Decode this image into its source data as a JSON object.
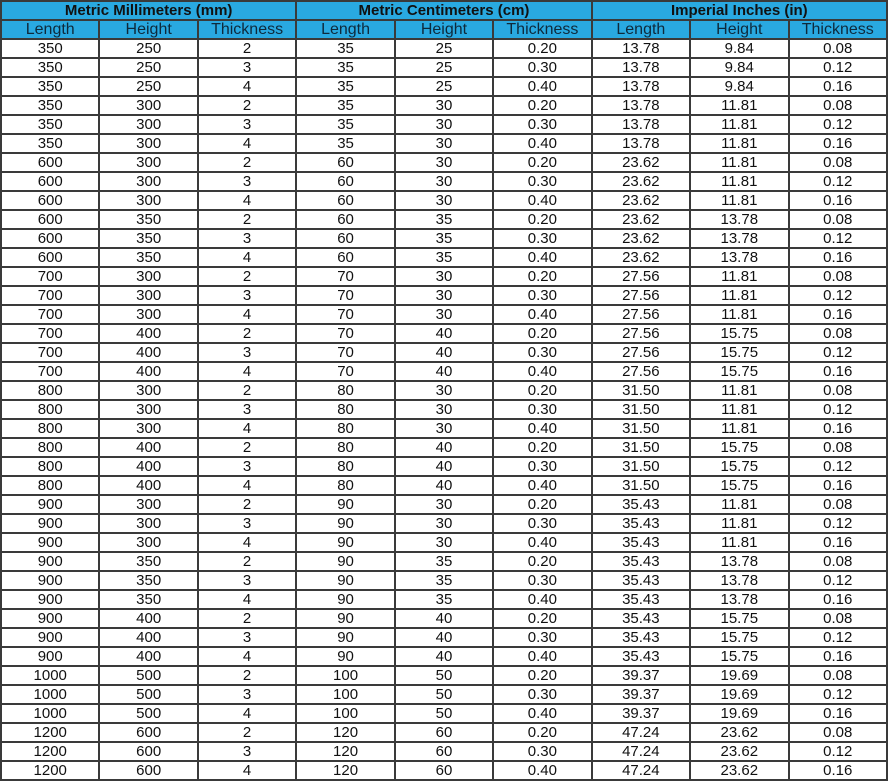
{
  "groups": [
    "Metric Millimeters (mm)",
    "Metric Centimeters (cm)",
    "Imperial Inches (in)"
  ],
  "subheaders": [
    "Length",
    "Height",
    "Thickness",
    "Length",
    "Height",
    "Thickness",
    "Length",
    "Height",
    "Thickness"
  ],
  "header_color": "#29a9e1",
  "rows": [
    [
      "350",
      "250",
      "2",
      "35",
      "25",
      "0.20",
      "13.78",
      "9.84",
      "0.08"
    ],
    [
      "350",
      "250",
      "3",
      "35",
      "25",
      "0.30",
      "13.78",
      "9.84",
      "0.12"
    ],
    [
      "350",
      "250",
      "4",
      "35",
      "25",
      "0.40",
      "13.78",
      "9.84",
      "0.16"
    ],
    [
      "350",
      "300",
      "2",
      "35",
      "30",
      "0.20",
      "13.78",
      "11.81",
      "0.08"
    ],
    [
      "350",
      "300",
      "3",
      "35",
      "30",
      "0.30",
      "13.78",
      "11.81",
      "0.12"
    ],
    [
      "350",
      "300",
      "4",
      "35",
      "30",
      "0.40",
      "13.78",
      "11.81",
      "0.16"
    ],
    [
      "600",
      "300",
      "2",
      "60",
      "30",
      "0.20",
      "23.62",
      "11.81",
      "0.08"
    ],
    [
      "600",
      "300",
      "3",
      "60",
      "30",
      "0.30",
      "23.62",
      "11.81",
      "0.12"
    ],
    [
      "600",
      "300",
      "4",
      "60",
      "30",
      "0.40",
      "23.62",
      "11.81",
      "0.16"
    ],
    [
      "600",
      "350",
      "2",
      "60",
      "35",
      "0.20",
      "23.62",
      "13.78",
      "0.08"
    ],
    [
      "600",
      "350",
      "3",
      "60",
      "35",
      "0.30",
      "23.62",
      "13.78",
      "0.12"
    ],
    [
      "600",
      "350",
      "4",
      "60",
      "35",
      "0.40",
      "23.62",
      "13.78",
      "0.16"
    ],
    [
      "700",
      "300",
      "2",
      "70",
      "30",
      "0.20",
      "27.56",
      "11.81",
      "0.08"
    ],
    [
      "700",
      "300",
      "3",
      "70",
      "30",
      "0.30",
      "27.56",
      "11.81",
      "0.12"
    ],
    [
      "700",
      "300",
      "4",
      "70",
      "30",
      "0.40",
      "27.56",
      "11.81",
      "0.16"
    ],
    [
      "700",
      "400",
      "2",
      "70",
      "40",
      "0.20",
      "27.56",
      "15.75",
      "0.08"
    ],
    [
      "700",
      "400",
      "3",
      "70",
      "40",
      "0.30",
      "27.56",
      "15.75",
      "0.12"
    ],
    [
      "700",
      "400",
      "4",
      "70",
      "40",
      "0.40",
      "27.56",
      "15.75",
      "0.16"
    ],
    [
      "800",
      "300",
      "2",
      "80",
      "30",
      "0.20",
      "31.50",
      "11.81",
      "0.08"
    ],
    [
      "800",
      "300",
      "3",
      "80",
      "30",
      "0.30",
      "31.50",
      "11.81",
      "0.12"
    ],
    [
      "800",
      "300",
      "4",
      "80",
      "30",
      "0.40",
      "31.50",
      "11.81",
      "0.16"
    ],
    [
      "800",
      "400",
      "2",
      "80",
      "40",
      "0.20",
      "31.50",
      "15.75",
      "0.08"
    ],
    [
      "800",
      "400",
      "3",
      "80",
      "40",
      "0.30",
      "31.50",
      "15.75",
      "0.12"
    ],
    [
      "800",
      "400",
      "4",
      "80",
      "40",
      "0.40",
      "31.50",
      "15.75",
      "0.16"
    ],
    [
      "900",
      "300",
      "2",
      "90",
      "30",
      "0.20",
      "35.43",
      "11.81",
      "0.08"
    ],
    [
      "900",
      "300",
      "3",
      "90",
      "30",
      "0.30",
      "35.43",
      "11.81",
      "0.12"
    ],
    [
      "900",
      "300",
      "4",
      "90",
      "30",
      "0.40",
      "35.43",
      "11.81",
      "0.16"
    ],
    [
      "900",
      "350",
      "2",
      "90",
      "35",
      "0.20",
      "35.43",
      "13.78",
      "0.08"
    ],
    [
      "900",
      "350",
      "3",
      "90",
      "35",
      "0.30",
      "35.43",
      "13.78",
      "0.12"
    ],
    [
      "900",
      "350",
      "4",
      "90",
      "35",
      "0.40",
      "35.43",
      "13.78",
      "0.16"
    ],
    [
      "900",
      "400",
      "2",
      "90",
      "40",
      "0.20",
      "35.43",
      "15.75",
      "0.08"
    ],
    [
      "900",
      "400",
      "3",
      "90",
      "40",
      "0.30",
      "35.43",
      "15.75",
      "0.12"
    ],
    [
      "900",
      "400",
      "4",
      "90",
      "40",
      "0.40",
      "35.43",
      "15.75",
      "0.16"
    ],
    [
      "1000",
      "500",
      "2",
      "100",
      "50",
      "0.20",
      "39.37",
      "19.69",
      "0.08"
    ],
    [
      "1000",
      "500",
      "3",
      "100",
      "50",
      "0.30",
      "39.37",
      "19.69",
      "0.12"
    ],
    [
      "1000",
      "500",
      "4",
      "100",
      "50",
      "0.40",
      "39.37",
      "19.69",
      "0.16"
    ],
    [
      "1200",
      "600",
      "2",
      "120",
      "60",
      "0.20",
      "47.24",
      "23.62",
      "0.08"
    ],
    [
      "1200",
      "600",
      "3",
      "120",
      "60",
      "0.30",
      "47.24",
      "23.62",
      "0.12"
    ],
    [
      "1200",
      "600",
      "4",
      "120",
      "60",
      "0.40",
      "47.24",
      "23.62",
      "0.16"
    ]
  ]
}
